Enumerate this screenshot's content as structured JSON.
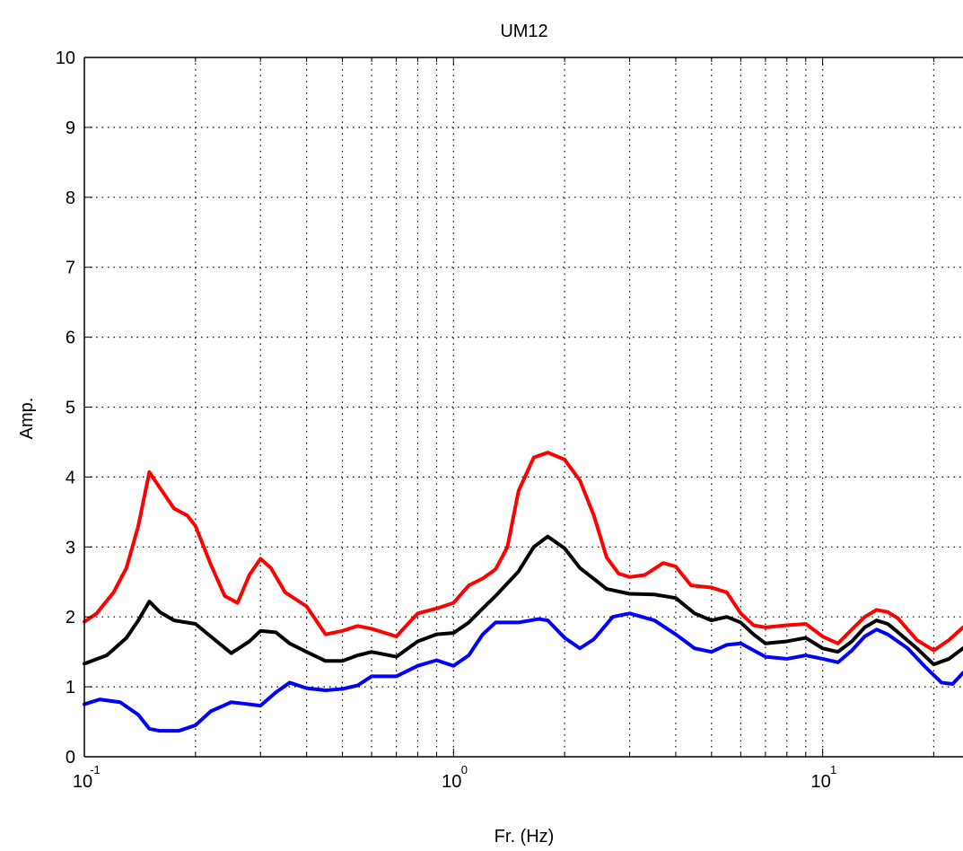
{
  "chart_data": {
    "type": "line",
    "title": "UM12",
    "xlabel": "Fr. (Hz)",
    "ylabel": "Amp.",
    "xscale": "log",
    "xlim": [
      0.1,
      24
    ],
    "ylim": [
      0,
      10
    ],
    "grid": true,
    "x_ticks": [
      {
        "base": "10",
        "exp": "-1"
      },
      {
        "base": "10",
        "exp": "0"
      },
      {
        "base": "10",
        "exp": "1"
      }
    ],
    "y_ticks": [
      "0",
      "1",
      "2",
      "3",
      "4",
      "5",
      "6",
      "7",
      "8",
      "9",
      "10"
    ],
    "series": [
      {
        "color": "#ff0000",
        "points": [
          [
            0.1,
            1.93
          ],
          [
            0.108,
            2.05
          ],
          [
            0.12,
            2.35
          ],
          [
            0.13,
            2.7
          ],
          [
            0.14,
            3.3
          ],
          [
            0.15,
            4.07
          ],
          [
            0.16,
            3.85
          ],
          [
            0.175,
            3.55
          ],
          [
            0.19,
            3.45
          ],
          [
            0.2,
            3.3
          ],
          [
            0.22,
            2.75
          ],
          [
            0.24,
            2.3
          ],
          [
            0.26,
            2.2
          ],
          [
            0.28,
            2.6
          ],
          [
            0.3,
            2.83
          ],
          [
            0.32,
            2.7
          ],
          [
            0.35,
            2.35
          ],
          [
            0.4,
            2.15
          ],
          [
            0.45,
            1.75
          ],
          [
            0.5,
            1.8
          ],
          [
            0.55,
            1.87
          ],
          [
            0.6,
            1.83
          ],
          [
            0.7,
            1.72
          ],
          [
            0.8,
            2.05
          ],
          [
            0.9,
            2.12
          ],
          [
            1.0,
            2.2
          ],
          [
            1.1,
            2.45
          ],
          [
            1.2,
            2.55
          ],
          [
            1.3,
            2.68
          ],
          [
            1.4,
            3.0
          ],
          [
            1.5,
            3.8
          ],
          [
            1.65,
            4.28
          ],
          [
            1.8,
            4.35
          ],
          [
            2.0,
            4.25
          ],
          [
            2.2,
            3.95
          ],
          [
            2.4,
            3.45
          ],
          [
            2.6,
            2.85
          ],
          [
            2.8,
            2.62
          ],
          [
            3.0,
            2.57
          ],
          [
            3.3,
            2.6
          ],
          [
            3.7,
            2.77
          ],
          [
            4.0,
            2.72
          ],
          [
            4.4,
            2.45
          ],
          [
            5.0,
            2.42
          ],
          [
            5.5,
            2.35
          ],
          [
            6.0,
            2.05
          ],
          [
            6.5,
            1.88
          ],
          [
            7.0,
            1.85
          ],
          [
            8.0,
            1.88
          ],
          [
            9.0,
            1.9
          ],
          [
            10.0,
            1.72
          ],
          [
            11.0,
            1.62
          ],
          [
            12.0,
            1.82
          ],
          [
            13.0,
            2.0
          ],
          [
            14.0,
            2.1
          ],
          [
            15.0,
            2.07
          ],
          [
            16.0,
            1.98
          ],
          [
            18.0,
            1.67
          ],
          [
            20.0,
            1.52
          ],
          [
            22.0,
            1.67
          ],
          [
            24.0,
            1.85
          ]
        ]
      },
      {
        "color": "#000000",
        "points": [
          [
            0.1,
            1.33
          ],
          [
            0.115,
            1.45
          ],
          [
            0.13,
            1.7
          ],
          [
            0.14,
            1.95
          ],
          [
            0.15,
            2.22
          ],
          [
            0.16,
            2.07
          ],
          [
            0.175,
            1.95
          ],
          [
            0.2,
            1.9
          ],
          [
            0.22,
            1.72
          ],
          [
            0.25,
            1.48
          ],
          [
            0.28,
            1.65
          ],
          [
            0.3,
            1.8
          ],
          [
            0.33,
            1.78
          ],
          [
            0.36,
            1.62
          ],
          [
            0.4,
            1.5
          ],
          [
            0.45,
            1.37
          ],
          [
            0.5,
            1.37
          ],
          [
            0.55,
            1.45
          ],
          [
            0.6,
            1.5
          ],
          [
            0.7,
            1.43
          ],
          [
            0.8,
            1.65
          ],
          [
            0.9,
            1.75
          ],
          [
            1.0,
            1.77
          ],
          [
            1.1,
            1.92
          ],
          [
            1.2,
            2.12
          ],
          [
            1.3,
            2.3
          ],
          [
            1.5,
            2.65
          ],
          [
            1.65,
            3.0
          ],
          [
            1.8,
            3.15
          ],
          [
            2.0,
            2.98
          ],
          [
            2.2,
            2.7
          ],
          [
            2.6,
            2.4
          ],
          [
            3.0,
            2.33
          ],
          [
            3.5,
            2.32
          ],
          [
            4.0,
            2.27
          ],
          [
            4.5,
            2.05
          ],
          [
            5.0,
            1.95
          ],
          [
            5.5,
            2.0
          ],
          [
            6.0,
            1.92
          ],
          [
            6.5,
            1.75
          ],
          [
            7.0,
            1.62
          ],
          [
            8.0,
            1.65
          ],
          [
            9.0,
            1.7
          ],
          [
            10.0,
            1.55
          ],
          [
            11.0,
            1.5
          ],
          [
            12.0,
            1.65
          ],
          [
            13.0,
            1.85
          ],
          [
            14.0,
            1.95
          ],
          [
            15.0,
            1.9
          ],
          [
            16.0,
            1.78
          ],
          [
            18.0,
            1.55
          ],
          [
            20.0,
            1.32
          ],
          [
            22.0,
            1.4
          ],
          [
            24.0,
            1.55
          ]
        ]
      },
      {
        "color": "#0000ff",
        "points": [
          [
            0.1,
            0.75
          ],
          [
            0.11,
            0.82
          ],
          [
            0.125,
            0.78
          ],
          [
            0.14,
            0.6
          ],
          [
            0.15,
            0.4
          ],
          [
            0.16,
            0.37
          ],
          [
            0.18,
            0.37
          ],
          [
            0.2,
            0.45
          ],
          [
            0.22,
            0.65
          ],
          [
            0.25,
            0.78
          ],
          [
            0.27,
            0.76
          ],
          [
            0.3,
            0.73
          ],
          [
            0.33,
            0.92
          ],
          [
            0.36,
            1.06
          ],
          [
            0.4,
            0.98
          ],
          [
            0.45,
            0.95
          ],
          [
            0.5,
            0.97
          ],
          [
            0.55,
            1.02
          ],
          [
            0.6,
            1.15
          ],
          [
            0.7,
            1.15
          ],
          [
            0.8,
            1.3
          ],
          [
            0.9,
            1.38
          ],
          [
            1.0,
            1.3
          ],
          [
            1.1,
            1.45
          ],
          [
            1.2,
            1.75
          ],
          [
            1.3,
            1.92
          ],
          [
            1.5,
            1.92
          ],
          [
            1.7,
            1.97
          ],
          [
            1.8,
            1.95
          ],
          [
            2.0,
            1.7
          ],
          [
            2.2,
            1.55
          ],
          [
            2.4,
            1.68
          ],
          [
            2.7,
            2.0
          ],
          [
            3.0,
            2.05
          ],
          [
            3.5,
            1.95
          ],
          [
            4.0,
            1.75
          ],
          [
            4.5,
            1.55
          ],
          [
            5.0,
            1.5
          ],
          [
            5.5,
            1.6
          ],
          [
            6.0,
            1.62
          ],
          [
            7.0,
            1.43
          ],
          [
            8.0,
            1.4
          ],
          [
            9.0,
            1.45
          ],
          [
            10.0,
            1.4
          ],
          [
            11.0,
            1.35
          ],
          [
            12.0,
            1.52
          ],
          [
            13.0,
            1.72
          ],
          [
            14.0,
            1.82
          ],
          [
            15.0,
            1.75
          ],
          [
            17.0,
            1.55
          ],
          [
            19.0,
            1.28
          ],
          [
            21.0,
            1.06
          ],
          [
            22.5,
            1.04
          ],
          [
            24.0,
            1.2
          ]
        ]
      }
    ]
  }
}
